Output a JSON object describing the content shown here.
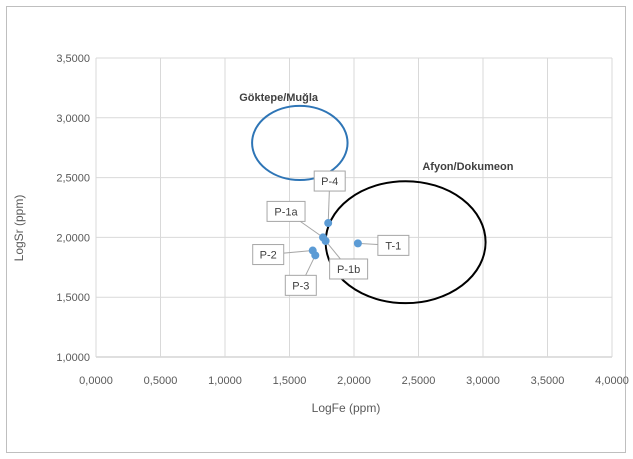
{
  "chart_data": {
    "type": "scatter",
    "xlabel": "LogFe (ppm)",
    "ylabel": "LogSr (ppm)",
    "xlim": [
      0,
      4
    ],
    "ylim": [
      1,
      3.5
    ],
    "x_ticks": [
      "0,0000",
      "0,5000",
      "1,0000",
      "1,5000",
      "2,0000",
      "2,5000",
      "3,0000",
      "3,5000",
      "4,0000"
    ],
    "y_ticks": [
      "1,0000",
      "1,5000",
      "2,0000",
      "2,5000",
      "3,0000",
      "3,5000"
    ],
    "grid": true,
    "marker_color": "#5b9bd5",
    "points": [
      {
        "label": "P-4",
        "x": 1.8,
        "y": 2.12
      },
      {
        "label": "P-1a",
        "x": 1.76,
        "y": 2.0
      },
      {
        "label": "P-1b",
        "x": 1.78,
        "y": 1.97
      },
      {
        "label": "P-2",
        "x": 1.68,
        "y": 1.89
      },
      {
        "label": "P-3",
        "x": 1.7,
        "y": 1.85
      },
      {
        "label": "T-1",
        "x": 2.03,
        "y": 1.95
      }
    ],
    "regions": [
      {
        "label": "Göktepe/Muğla",
        "color": "#2e75b6",
        "cx": 1.58,
        "cy": 2.79,
        "rx": 0.37,
        "ry": 0.31
      },
      {
        "label": "Afyon/Dokumeon",
        "color": "#000000",
        "cx": 2.4,
        "cy": 1.96,
        "rx": 0.62,
        "ry": 0.51
      }
    ]
  }
}
